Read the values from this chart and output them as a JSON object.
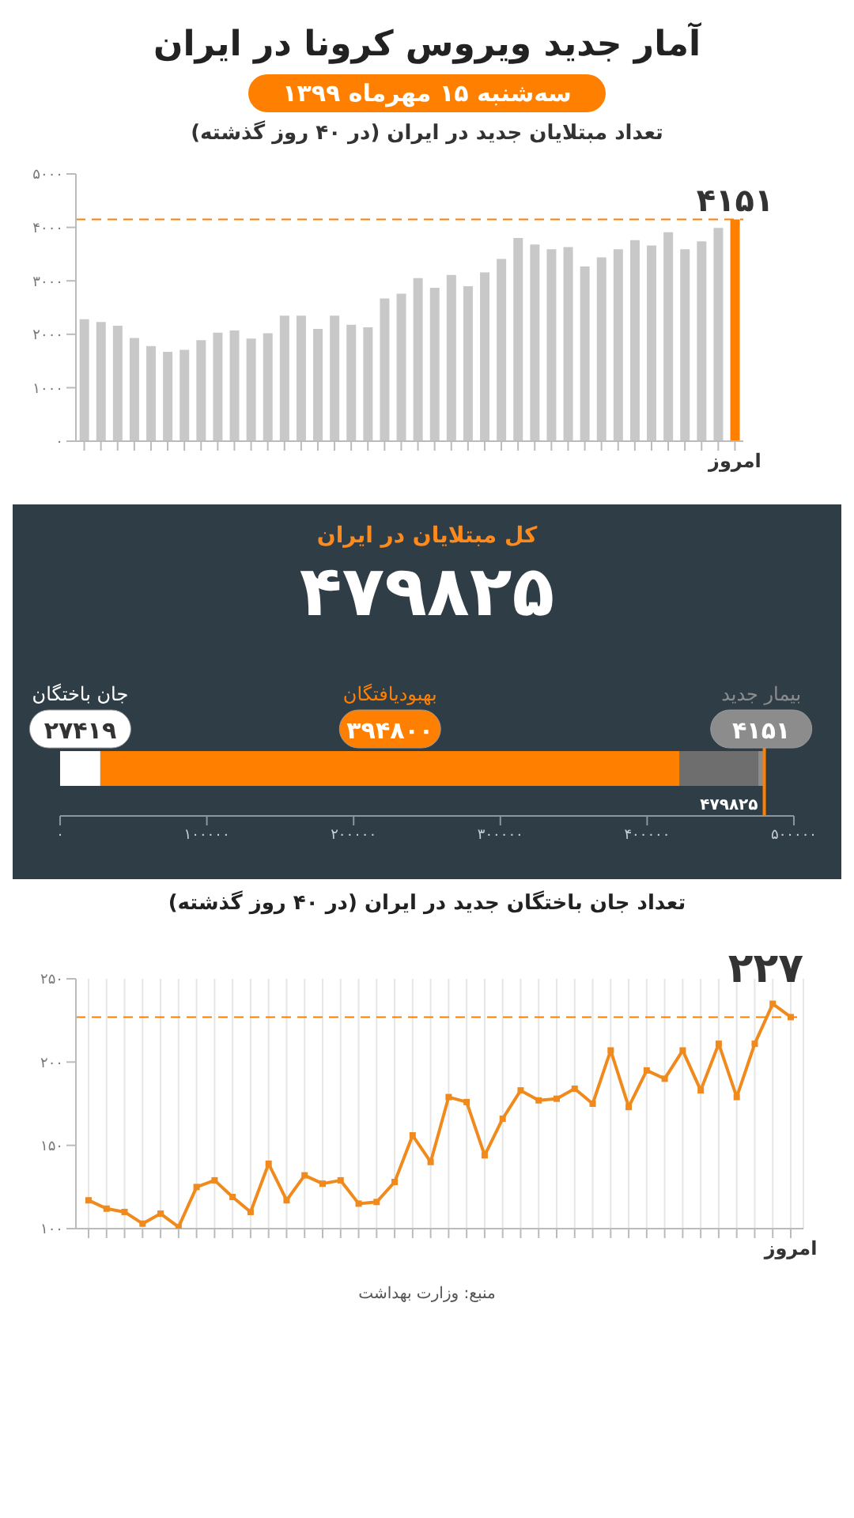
{
  "chart_data": [
    {
      "type": "bar",
      "title": "آمار جدید ویروس کرونا در ایران",
      "subtitle": "سه‌شنبه ۱۵ مهرماه ۱۳۹۹",
      "annotations": [
        "تعداد مبتلایان جدید در ایران (در ۴۰ روز گذشته)"
      ],
      "categories": [
        null,
        null,
        null,
        null,
        null,
        null,
        null,
        null,
        null,
        null,
        null,
        null,
        null,
        null,
        null,
        null,
        null,
        null,
        null,
        null,
        null,
        null,
        null,
        null,
        null,
        null,
        null,
        null,
        null,
        null,
        null,
        null,
        null,
        null,
        null,
        null,
        null,
        null,
        null,
        "امروز"
      ],
      "values": [
        2280,
        2230,
        2160,
        1930,
        1780,
        1670,
        1710,
        1890,
        2030,
        2070,
        1920,
        2020,
        2350,
        2350,
        2100,
        2350,
        2180,
        2130,
        2670,
        2760,
        3050,
        2870,
        3110,
        2900,
        3160,
        3410,
        3800,
        3680,
        3590,
        3630,
        3270,
        3440,
        3590,
        3760,
        3660,
        3910,
        3590,
        3740,
        3990,
        4151
      ],
      "colors": [
        "#c8c8c8",
        "#c8c8c8",
        "#c8c8c8",
        "#c8c8c8",
        "#c8c8c8",
        "#c8c8c8",
        "#c8c8c8",
        "#c8c8c8",
        "#c8c8c8",
        "#c8c8c8",
        "#c8c8c8",
        "#c8c8c8",
        "#c8c8c8",
        "#c8c8c8",
        "#c8c8c8",
        "#c8c8c8",
        "#c8c8c8",
        "#c8c8c8",
        "#c8c8c8",
        "#c8c8c8",
        "#c8c8c8",
        "#c8c8c8",
        "#c8c8c8",
        "#c8c8c8",
        "#c8c8c8",
        "#c8c8c8",
        "#c8c8c8",
        "#c8c8c8",
        "#c8c8c8",
        "#c8c8c8",
        "#c8c8c8",
        "#c8c8c8",
        "#c8c8c8",
        "#c8c8c8",
        "#c8c8c8",
        "#c8c8c8",
        "#c8c8c8",
        "#c8c8c8",
        "#c8c8c8",
        "#ff8000"
      ],
      "value_labels": [
        null,
        null,
        null,
        null,
        null,
        null,
        null,
        null,
        null,
        null,
        null,
        null,
        null,
        null,
        null,
        null,
        null,
        null,
        null,
        null,
        null,
        null,
        null,
        null,
        null,
        null,
        null,
        null,
        null,
        null,
        null,
        null,
        null,
        null,
        null,
        null,
        null,
        null,
        null,
        "۴۱۵۱"
      ],
      "ylim": [
        0,
        5000
      ],
      "yticks": [
        {
          "value": 0,
          "label": "۰"
        },
        {
          "value": 1000,
          "label": "۱۰۰۰"
        },
        {
          "value": 2000,
          "label": "۲۰۰۰"
        },
        {
          "value": 3000,
          "label": "۳۰۰۰"
        },
        {
          "value": 4000,
          "label": "۴۰۰۰"
        },
        {
          "value": 5000,
          "label": "۵۰۰۰"
        }
      ],
      "ref_lines": [
        {
          "axis": "y",
          "value": 4151,
          "color": "#ff8000",
          "line_style": "dashed"
        }
      ]
    },
    {
      "type": "bar",
      "orientation": "horizontal",
      "stacked": true,
      "title": "کل مبتلایان در ایران",
      "subtitle": "۴۷۹۸۲۵",
      "categories": [
        null
      ],
      "series": [
        {
          "name": "جان باختگان",
          "color": "#ffffff",
          "values": [
            27419
          ],
          "value_labels": [
            "۲۷۴۱۹"
          ]
        },
        {
          "name": "بهبودیافتگان",
          "color": "#ff8000",
          "values": [
            394800
          ],
          "value_labels": [
            "۳۹۴۸۰۰"
          ]
        },
        {
          "color": "#6e6e6e",
          "values": [
            53455
          ]
        },
        {
          "name": "بیمار جدید",
          "color": "#8c8c8c",
          "values": [
            4151
          ],
          "value_labels": [
            "۴۱۵۱"
          ]
        }
      ],
      "xlim": [
        0,
        500000
      ],
      "xticks": [
        {
          "value": 0,
          "label": "۰"
        },
        {
          "value": 100000,
          "label": "۱۰۰۰۰۰"
        },
        {
          "value": 200000,
          "label": "۲۰۰۰۰۰"
        },
        {
          "value": 300000,
          "label": "۳۰۰۰۰۰"
        },
        {
          "value": 400000,
          "label": "۴۰۰۰۰۰"
        },
        {
          "value": 500000,
          "label": "۵۰۰۰۰۰"
        }
      ],
      "ref_lines": [
        {
          "axis": "x",
          "value": 479825,
          "label": "۴۷۹۸۲۵",
          "color": "#ff8000"
        }
      ]
    },
    {
      "type": "line",
      "title": "تعداد جان باختگان جدید در ایران (در ۴۰ روز گذشته)",
      "annotations": [
        "منبع: وزارت بهداشت"
      ],
      "categories": [
        null,
        null,
        null,
        null,
        null,
        null,
        null,
        null,
        null,
        null,
        null,
        null,
        null,
        null,
        null,
        null,
        null,
        null,
        null,
        null,
        null,
        null,
        null,
        null,
        null,
        null,
        null,
        null,
        null,
        null,
        null,
        null,
        null,
        null,
        null,
        null,
        null,
        null,
        null,
        "امروز"
      ],
      "series": [
        {
          "color": "#f08a1c",
          "values": [
            117,
            112,
            110,
            103,
            109,
            101,
            125,
            129,
            119,
            110,
            139,
            117,
            132,
            127,
            129,
            115,
            116,
            128,
            156,
            140,
            179,
            176,
            144,
            166,
            183,
            177,
            178,
            184,
            175,
            207,
            173,
            195,
            190,
            207,
            183,
            211,
            179,
            211,
            235,
            227
          ],
          "value_labels": [
            null,
            null,
            null,
            null,
            null,
            null,
            null,
            null,
            null,
            null,
            null,
            null,
            null,
            null,
            null,
            null,
            null,
            null,
            null,
            null,
            null,
            null,
            null,
            null,
            null,
            null,
            null,
            null,
            null,
            null,
            null,
            null,
            null,
            null,
            null,
            null,
            null,
            null,
            null,
            "۲۲۷"
          ]
        }
      ],
      "ylim": [
        100,
        250
      ],
      "yticks": [
        {
          "value": 100,
          "label": "۱۰۰"
        },
        {
          "value": 150,
          "label": "۱۵۰"
        },
        {
          "value": 200,
          "label": "۲۰۰"
        },
        {
          "value": 250,
          "label": "۲۵۰"
        }
      ],
      "grid": "x",
      "marker": "square",
      "ref_lines": [
        {
          "axis": "y",
          "value": 227,
          "color": "#ff8000",
          "line_style": "dashed"
        }
      ]
    }
  ]
}
